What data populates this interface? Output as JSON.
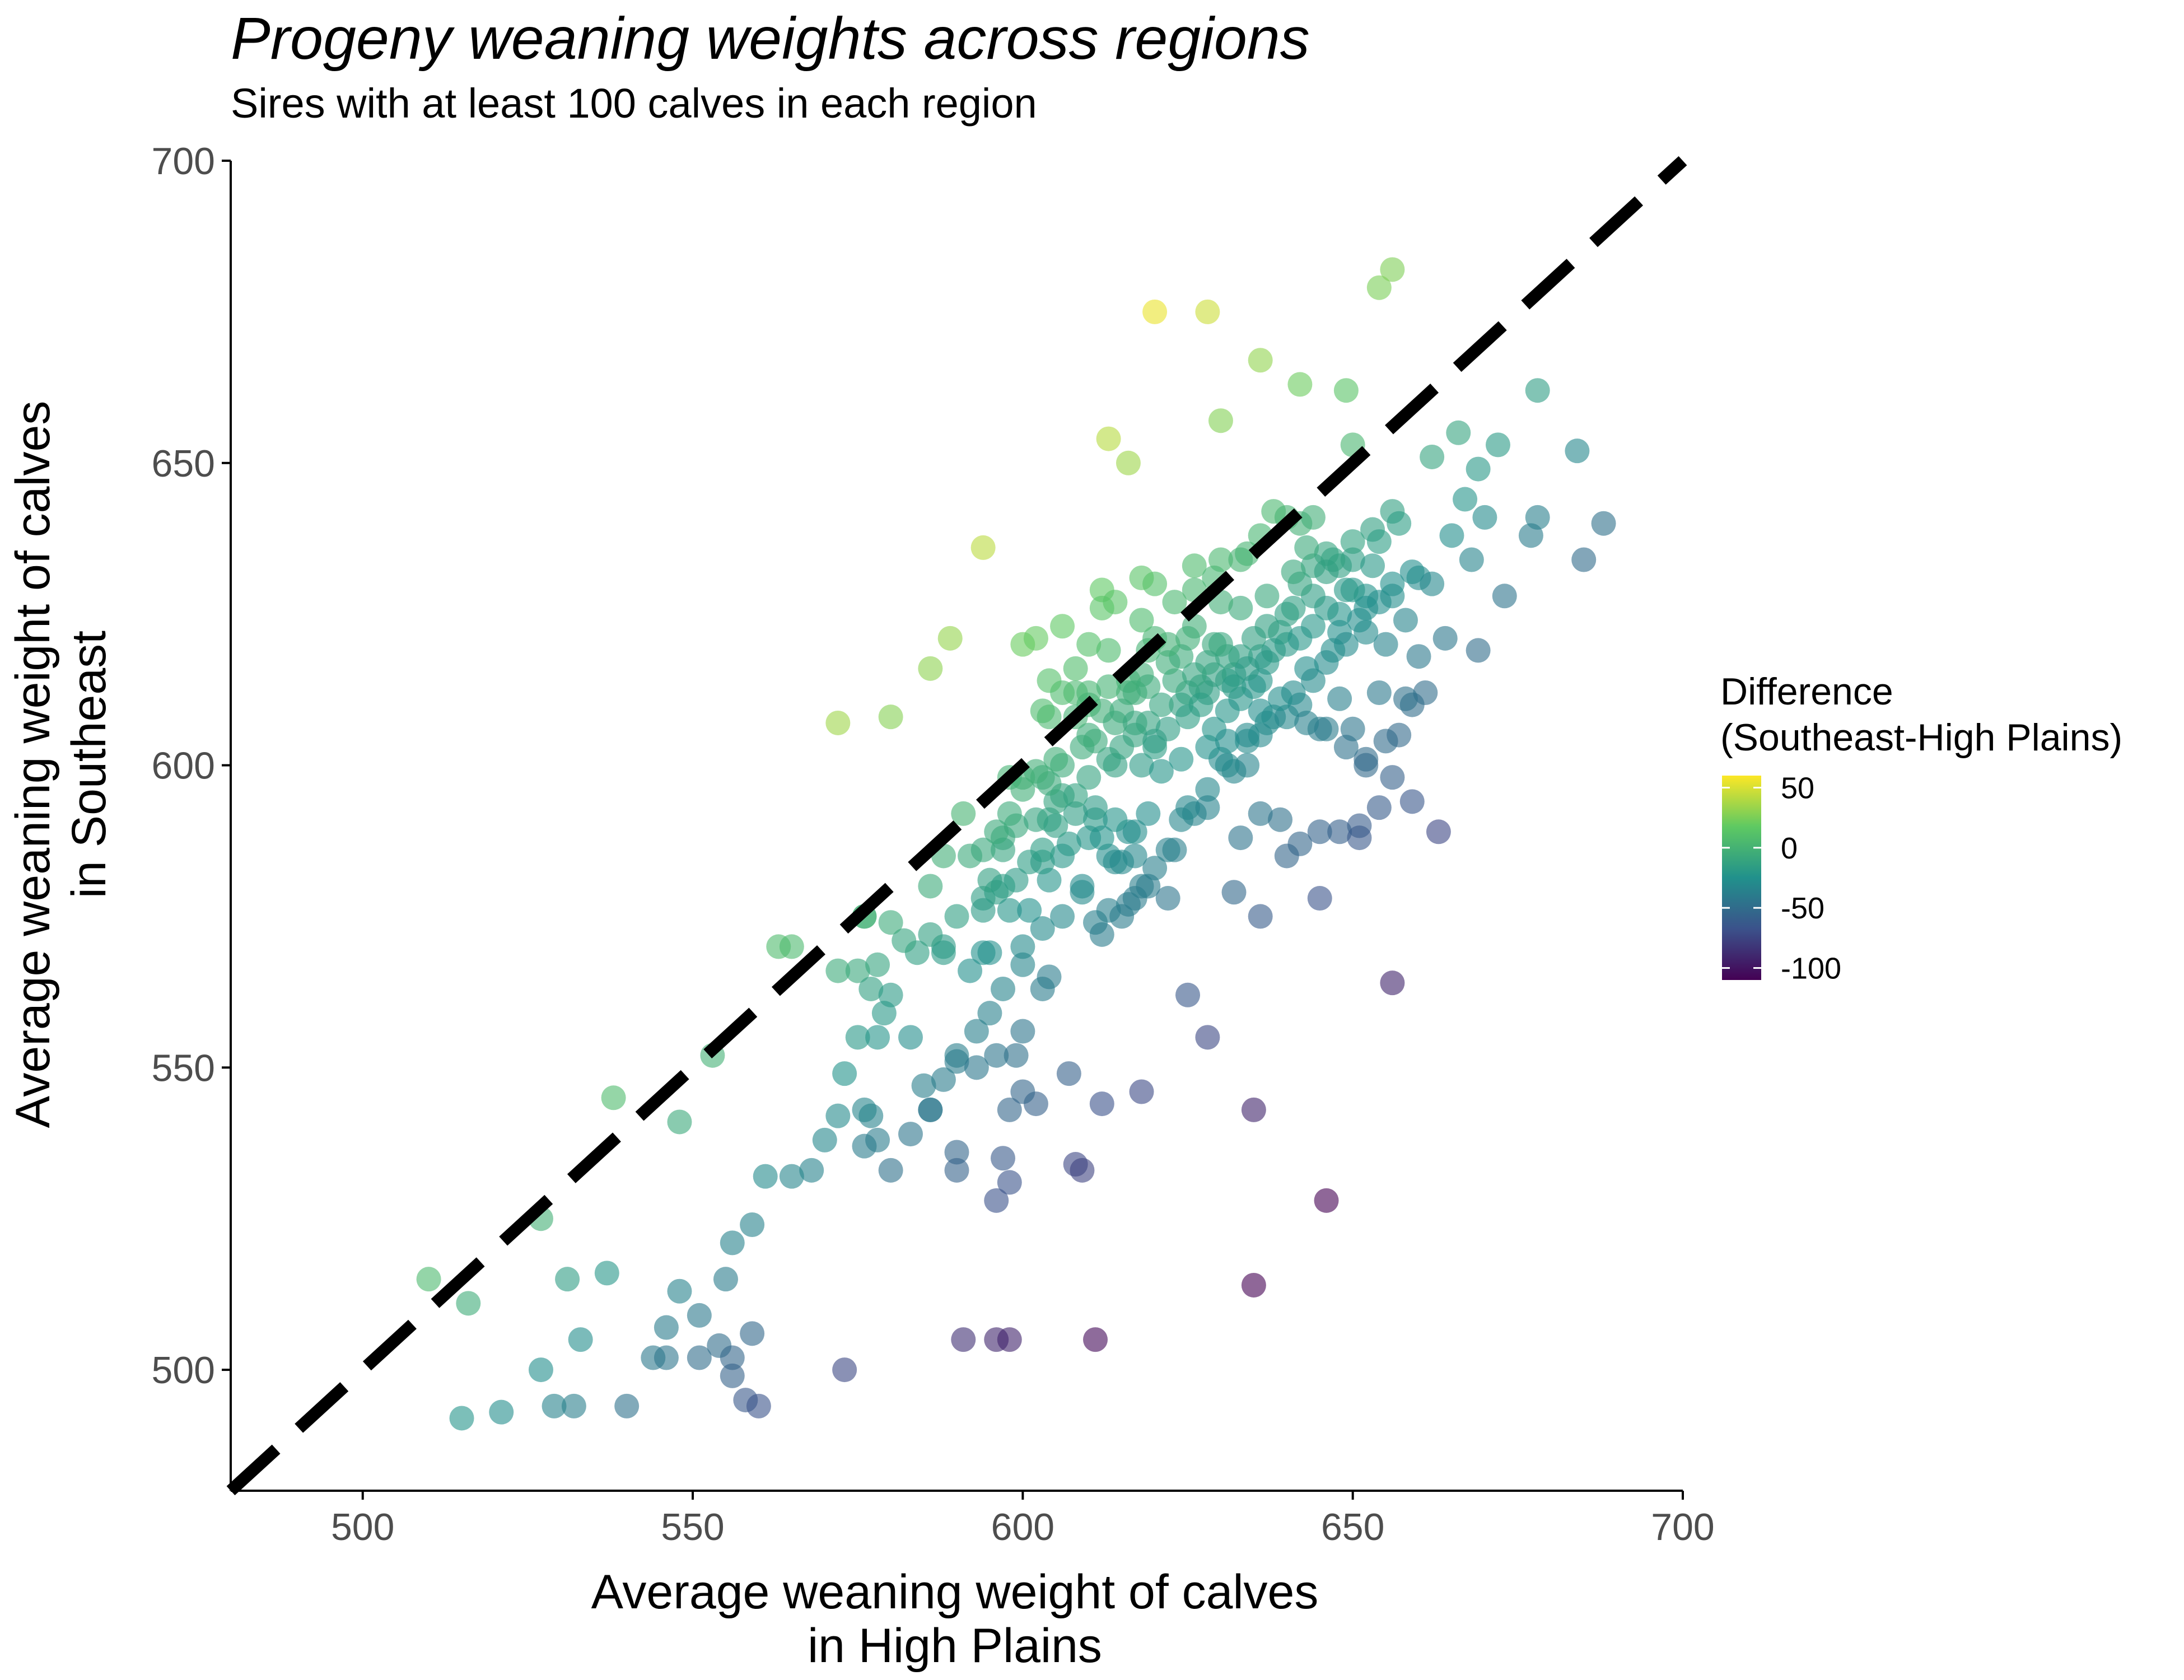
{
  "chart_data": {
    "type": "scatter",
    "title": "Progeny weaning weights across regions",
    "subtitle": "Sires with at least 100 calves in each region",
    "xlabel": [
      "Average weaning weight of calves",
      "in High Plains"
    ],
    "ylabel": [
      "Average weaning weight of calves",
      "in Southeast"
    ],
    "xlim": [
      480,
      700
    ],
    "ylim": [
      480,
      700
    ],
    "xticks": [
      500,
      550,
      600,
      650,
      700
    ],
    "yticks": [
      500,
      550,
      600,
      650,
      700
    ],
    "grid": false,
    "reference_line": {
      "type": "identity",
      "style": "dashed",
      "color": "#000000"
    },
    "legend": {
      "title": [
        "Difference",
        "(Southeast-High Plains)"
      ],
      "placement": "right",
      "colorbar_range": [
        -110,
        60
      ],
      "ticks": [
        50,
        0,
        -50,
        -100
      ],
      "tick_labels": [
        "50",
        "0",
        "-50",
        "-100"
      ]
    },
    "colormap": [
      "#440154",
      "#3b528b",
      "#21918c",
      "#5ec962",
      "#fde725"
    ],
    "point_opacity": 0.6,
    "points": [
      [
        510,
        515
      ],
      [
        516,
        511
      ],
      [
        527,
        525
      ],
      [
        538,
        545
      ],
      [
        548,
        541
      ],
      [
        553,
        552
      ],
      [
        565,
        570
      ],
      [
        572,
        607
      ],
      [
        576,
        575
      ],
      [
        580,
        608
      ],
      [
        586,
        616
      ],
      [
        589,
        621
      ],
      [
        594,
        636
      ],
      [
        613,
        654
      ],
      [
        616,
        650
      ],
      [
        620,
        675
      ],
      [
        628,
        675
      ],
      [
        630,
        657
      ],
      [
        636,
        667
      ],
      [
        642,
        663
      ],
      [
        649,
        662
      ],
      [
        654,
        679
      ],
      [
        656,
        682
      ],
      [
        650,
        653
      ],
      [
        678,
        662
      ],
      [
        684,
        652
      ],
      [
        688,
        640
      ],
      [
        685,
        634
      ],
      [
        677,
        638
      ],
      [
        678,
        641
      ],
      [
        672,
        653
      ],
      [
        669,
        649
      ],
      [
        666,
        655
      ],
      [
        662,
        651
      ],
      [
        656,
        642
      ],
      [
        653,
        639
      ],
      [
        650,
        634
      ],
      [
        642,
        640
      ],
      [
        638,
        642
      ],
      [
        634,
        635
      ],
      [
        630,
        634
      ],
      [
        626,
        633
      ],
      [
        620,
        630
      ],
      [
        618,
        631
      ],
      [
        612,
        629
      ],
      [
        600,
        620
      ],
      [
        602,
        621
      ],
      [
        608,
        612
      ],
      [
        606,
        623
      ],
      [
        610,
        612
      ],
      [
        616,
        612
      ],
      [
        618,
        615
      ],
      [
        613,
        619
      ],
      [
        604,
        608
      ],
      [
        598,
        598
      ],
      [
        591,
        592
      ],
      [
        586,
        580
      ],
      [
        588,
        585
      ],
      [
        600,
        596
      ],
      [
        605,
        594
      ],
      [
        610,
        598
      ],
      [
        614,
        600
      ],
      [
        618,
        600
      ],
      [
        620,
        603
      ],
      [
        624,
        610
      ],
      [
        628,
        612
      ],
      [
        632,
        615
      ],
      [
        636,
        618
      ],
      [
        640,
        620
      ],
      [
        644,
        623
      ],
      [
        648,
        625
      ],
      [
        652,
        628
      ],
      [
        656,
        630
      ],
      [
        660,
        631
      ],
      [
        664,
        621
      ],
      [
        669,
        619
      ],
      [
        673,
        628
      ],
      [
        668,
        634
      ],
      [
        670,
        641
      ],
      [
        667,
        644
      ],
      [
        665,
        638
      ],
      [
        661,
        612
      ],
      [
        659,
        610
      ],
      [
        657,
        605
      ],
      [
        655,
        604
      ],
      [
        652,
        601
      ],
      [
        650,
        606
      ],
      [
        648,
        611
      ],
      [
        645,
        606
      ],
      [
        642,
        610
      ],
      [
        638,
        608
      ],
      [
        636,
        605
      ],
      [
        634,
        600
      ],
      [
        632,
        599
      ],
      [
        630,
        601
      ],
      [
        628,
        596
      ],
      [
        626,
        592
      ],
      [
        624,
        591
      ],
      [
        622,
        586
      ],
      [
        618,
        580
      ],
      [
        616,
        577
      ],
      [
        613,
        576
      ],
      [
        611,
        574
      ],
      [
        609,
        579
      ],
      [
        606,
        585
      ],
      [
        604,
        581
      ],
      [
        601,
        584
      ],
      [
        597,
        588
      ],
      [
        594,
        578
      ],
      [
        592,
        585
      ],
      [
        596,
        579
      ],
      [
        598,
        576
      ],
      [
        601,
        576
      ],
      [
        603,
        573
      ],
      [
        600,
        570
      ],
      [
        597,
        563
      ],
      [
        595,
        559
      ],
      [
        593,
        556
      ],
      [
        590,
        552
      ],
      [
        588,
        548
      ],
      [
        586,
        543
      ],
      [
        583,
        539
      ],
      [
        580,
        533
      ],
      [
        576,
        537
      ],
      [
        572,
        542
      ],
      [
        570,
        538
      ],
      [
        568,
        533
      ],
      [
        565,
        532
      ],
      [
        561,
        532
      ],
      [
        559,
        524
      ],
      [
        556,
        521
      ],
      [
        555,
        515
      ],
      [
        551,
        509
      ],
      [
        548,
        513
      ],
      [
        546,
        507
      ],
      [
        544,
        502
      ],
      [
        540,
        494
      ],
      [
        532,
        494
      ],
      [
        529,
        494
      ],
      [
        521,
        493
      ],
      [
        515,
        492
      ],
      [
        527,
        500
      ],
      [
        533,
        505
      ],
      [
        531,
        515
      ],
      [
        537,
        516
      ],
      [
        546,
        502
      ],
      [
        551,
        502
      ],
      [
        554,
        504
      ],
      [
        556,
        502
      ],
      [
        556,
        499
      ],
      [
        558,
        495
      ],
      [
        560,
        494
      ],
      [
        559,
        506
      ],
      [
        573,
        500
      ],
      [
        591,
        505
      ],
      [
        596,
        505
      ],
      [
        598,
        505
      ],
      [
        611,
        505
      ],
      [
        635,
        514
      ],
      [
        646,
        528
      ],
      [
        635,
        543
      ],
      [
        656,
        564
      ],
      [
        625,
        562
      ],
      [
        628,
        555
      ],
      [
        618,
        546
      ],
      [
        612,
        544
      ],
      [
        607,
        549
      ],
      [
        602,
        544
      ],
      [
        600,
        546
      ],
      [
        598,
        543
      ],
      [
        596,
        528
      ],
      [
        597,
        535
      ],
      [
        598,
        531
      ],
      [
        608,
        534
      ],
      [
        609,
        533
      ],
      [
        590,
        536
      ],
      [
        590,
        533
      ],
      [
        586,
        543
      ],
      [
        585,
        547
      ],
      [
        590,
        551
      ],
      [
        593,
        550
      ],
      [
        596,
        552
      ],
      [
        599,
        552
      ],
      [
        600,
        556
      ],
      [
        603,
        563
      ],
      [
        604,
        565
      ],
      [
        600,
        567
      ],
      [
        595,
        569
      ],
      [
        594,
        569
      ],
      [
        592,
        566
      ],
      [
        588,
        570
      ],
      [
        584,
        569
      ],
      [
        582,
        571
      ],
      [
        578,
        567
      ],
      [
        575,
        566
      ],
      [
        572,
        566
      ],
      [
        577,
        563
      ],
      [
        580,
        562
      ],
      [
        579,
        559
      ],
      [
        583,
        555
      ],
      [
        578,
        555
      ],
      [
        573,
        549
      ],
      [
        577,
        542
      ],
      [
        576,
        543
      ],
      [
        578,
        538
      ],
      [
        575,
        555
      ],
      [
        563,
        570
      ],
      [
        576,
        575
      ],
      [
        580,
        574
      ],
      [
        586,
        572
      ],
      [
        588,
        569
      ],
      [
        590,
        575
      ],
      [
        595,
        581
      ],
      [
        597,
        586
      ],
      [
        599,
        590
      ],
      [
        602,
        591
      ],
      [
        604,
        591
      ],
      [
        606,
        595
      ],
      [
        608,
        592
      ],
      [
        611,
        591
      ],
      [
        613,
        585
      ],
      [
        617,
        585
      ],
      [
        620,
        583
      ],
      [
        623,
        586
      ],
      [
        625,
        593
      ],
      [
        628,
        593
      ],
      [
        631,
        600
      ],
      [
        634,
        604
      ],
      [
        637,
        607
      ],
      [
        640,
        608
      ],
      [
        643,
        607
      ],
      [
        646,
        606
      ],
      [
        649,
        603
      ],
      [
        652,
        600
      ],
      [
        656,
        598
      ],
      [
        659,
        594
      ],
      [
        654,
        593
      ],
      [
        651,
        590
      ],
      [
        648,
        589
      ],
      [
        645,
        589
      ],
      [
        642,
        587
      ],
      [
        639,
        591
      ],
      [
        636,
        592
      ],
      [
        633,
        588
      ],
      [
        632,
        579
      ],
      [
        636,
        575
      ],
      [
        640,
        585
      ],
      [
        645,
        578
      ],
      [
        651,
        588
      ],
      [
        663,
        589
      ],
      [
        654,
        612
      ],
      [
        658,
        611
      ],
      [
        660,
        618
      ],
      [
        655,
        620
      ],
      [
        658,
        624
      ],
      [
        652,
        622
      ],
      [
        648,
        622
      ],
      [
        646,
        626
      ],
      [
        644,
        628
      ],
      [
        641,
        626
      ],
      [
        639,
        622
      ],
      [
        637,
        617
      ],
      [
        635,
        613
      ],
      [
        633,
        611
      ],
      [
        631,
        614
      ],
      [
        629,
        615
      ],
      [
        627,
        613
      ],
      [
        625,
        612
      ],
      [
        623,
        614
      ],
      [
        621,
        610
      ],
      [
        619,
        607
      ],
      [
        617,
        605
      ],
      [
        615,
        603
      ],
      [
        613,
        601
      ],
      [
        611,
        604
      ],
      [
        621,
        599
      ],
      [
        624,
        601
      ],
      [
        628,
        603
      ],
      [
        631,
        609
      ],
      [
        633,
        618
      ],
      [
        637,
        623
      ],
      [
        640,
        625
      ],
      [
        642,
        630
      ],
      [
        644,
        633
      ],
      [
        646,
        635
      ],
      [
        648,
        633
      ],
      [
        650,
        629
      ],
      [
        652,
        626
      ],
      [
        649,
        620
      ],
      [
        646,
        617
      ],
      [
        643,
        616
      ],
      [
        641,
        612
      ],
      [
        639,
        611
      ],
      [
        636,
        614
      ],
      [
        634,
        616
      ],
      [
        631,
        618
      ],
      [
        629,
        620
      ],
      [
        626,
        623
      ],
      [
        633,
        626
      ],
      [
        637,
        628
      ],
      [
        641,
        632
      ],
      [
        643,
        636
      ],
      [
        647,
        634
      ],
      [
        650,
        637
      ],
      [
        654,
        637
      ],
      [
        657,
        640
      ],
      [
        654,
        627
      ],
      [
        651,
        624
      ],
      [
        647,
        619
      ],
      [
        644,
        614
      ],
      [
        642,
        621
      ],
      [
        638,
        619
      ],
      [
        635,
        621
      ],
      [
        630,
        627
      ],
      [
        625,
        621
      ],
      [
        622,
        617
      ],
      [
        619,
        613
      ],
      [
        616,
        614
      ],
      [
        612,
        609
      ],
      [
        609,
        603
      ],
      [
        606,
        600
      ],
      [
        604,
        597
      ],
      [
        603,
        598
      ],
      [
        610,
        605
      ],
      [
        614,
        607
      ],
      [
        617,
        612
      ],
      [
        619,
        619
      ],
      [
        623,
        627
      ],
      [
        626,
        629
      ],
      [
        629,
        631
      ],
      [
        633,
        634
      ],
      [
        636,
        638
      ],
      [
        640,
        641
      ],
      [
        644,
        641
      ],
      [
        646,
        632
      ],
      [
        649,
        629
      ],
      [
        653,
        633
      ],
      [
        656,
        628
      ],
      [
        659,
        632
      ],
      [
        662,
        630
      ],
      [
        603,
        584
      ],
      [
        607,
        587
      ],
      [
        610,
        588
      ],
      [
        614,
        584
      ],
      [
        616,
        589
      ],
      [
        619,
        592
      ],
      [
        614,
        591
      ],
      [
        612,
        588
      ],
      [
        609,
        580
      ],
      [
        606,
        575
      ],
      [
        612,
        572
      ],
      [
        615,
        575
      ],
      [
        617,
        578
      ],
      [
        619,
        580
      ],
      [
        622,
        578
      ],
      [
        615,
        584
      ],
      [
        617,
        589
      ],
      [
        611,
        593
      ],
      [
        608,
        595
      ],
      [
        605,
        590
      ],
      [
        603,
        586
      ],
      [
        599,
        581
      ],
      [
        597,
        580
      ],
      [
        594,
        576
      ],
      [
        594,
        586
      ],
      [
        596,
        589
      ],
      [
        598,
        592
      ],
      [
        600,
        598
      ],
      [
        602,
        599
      ],
      [
        605,
        601
      ],
      [
        608,
        608
      ],
      [
        610,
        610
      ],
      [
        613,
        613
      ],
      [
        615,
        609
      ],
      [
        617,
        607
      ],
      [
        620,
        604
      ],
      [
        622,
        606
      ],
      [
        625,
        608
      ],
      [
        627,
        610
      ],
      [
        629,
        606
      ],
      [
        631,
        604
      ],
      [
        634,
        605
      ],
      [
        636,
        609
      ],
      [
        632,
        613
      ],
      [
        630,
        620
      ],
      [
        628,
        617
      ],
      [
        626,
        615
      ],
      [
        624,
        618
      ],
      [
        622,
        620
      ],
      [
        620,
        621
      ],
      [
        618,
        624
      ],
      [
        614,
        627
      ],
      [
        612,
        626
      ],
      [
        610,
        620
      ],
      [
        608,
        616
      ],
      [
        606,
        612
      ],
      [
        604,
        614
      ],
      [
        603,
        609
      ]
    ]
  }
}
